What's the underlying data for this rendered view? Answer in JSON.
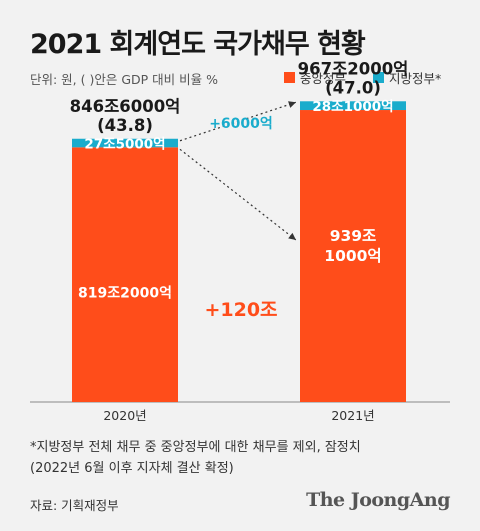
{
  "header": {
    "title": "2021 회계연도 국가채무 현황",
    "unit_note": "단위: 원, ( )안은 GDP 대비 비율 %"
  },
  "legend": [
    {
      "label": "중앙정부",
      "color": "#ff4d1a"
    },
    {
      "label": "지방정부*",
      "color": "#1aaccc"
    }
  ],
  "chart_data": {
    "type": "bar",
    "stacked": true,
    "categories": [
      "2020년",
      "2021년"
    ],
    "unit": "원",
    "series": [
      {
        "name": "중앙정부",
        "values": [
          8192000,
          9391000
        ],
        "labels": [
          "819조2000억",
          "939조\n1000억"
        ],
        "color": "#ff4d1a"
      },
      {
        "name": "지방정부*",
        "values": [
          275000,
          281000
        ],
        "labels": [
          "27조5000억",
          "28조1000억"
        ],
        "color": "#1aaccc"
      }
    ],
    "totals": [
      {
        "value": "846조6000억",
        "gdp_ratio": "(43.8)"
      },
      {
        "value": "967조2000억",
        "gdp_ratio": "(47.0)"
      }
    ],
    "annotations": [
      {
        "text": "+6000억",
        "series": "지방정부*",
        "color": "#1aaccc"
      },
      {
        "text": "+120조",
        "series": "중앙정부",
        "color": "#ff4d1a"
      }
    ],
    "ylim": [
      0,
      11000000
    ],
    "grid": false,
    "legend_position": "top-right"
  },
  "footnote": {
    "line1": "*지방정부 전체 채무 중 중앙정부에 대한 채무를 제외, 잠정치",
    "line2": "(2022년 6월 이후 지자체 결산 확정)"
  },
  "source": "자료: 기획재정부",
  "brand": "The JoongAng"
}
